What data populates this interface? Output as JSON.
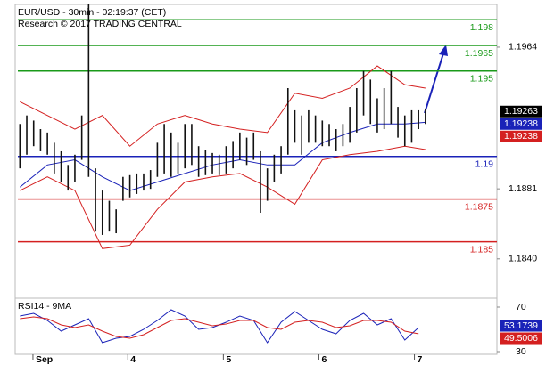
{
  "chart_data": [
    {
      "type": "ohlc",
      "title": "EUR/USD - 30min - 02:19:37 (CET)",
      "subtitle": "Research © 2017 TRADING CENTRAL",
      "xlim": [
        -0.3,
        69.4
      ],
      "ylim": [
        1.1818,
        1.1989
      ],
      "yticks": [
        1.1964,
        1.1881,
        {
          "value": 1.184,
          "label": "1.1840"
        }
      ],
      "xticks": [
        {
          "value": 1.9,
          "label": "Sep"
        },
        {
          "value": 15.7,
          "label": "4"
        },
        {
          "value": 29.6,
          "label": "5"
        },
        {
          "value": 43.5,
          "label": "6"
        },
        {
          "value": 57.4,
          "label": "7"
        }
      ],
      "highs": [
        1.1919,
        1.1924,
        1.1921,
        1.1916,
        1.1914,
        1.1908,
        1.1903,
        1.1895,
        1.1901,
        1.1924,
        1.1989,
        1.1893,
        1.188,
        1.1874,
        1.1869,
        1.1888,
        1.1889,
        1.189,
        1.189,
        1.1892,
        1.1908,
        1.1919,
        1.1914,
        1.1908,
        1.1919,
        1.1919,
        1.1906,
        1.1904,
        1.1902,
        1.1901,
        1.1906,
        1.1909,
        1.1914,
        1.1911,
        1.1914,
        1.1903,
        1.1893,
        1.1901,
        1.1906,
        1.194,
        1.1927,
        1.1924,
        1.1927,
        1.1924,
        1.1921,
        1.1919,
        1.1916,
        1.1919,
        1.1929,
        1.194,
        1.195,
        1.1945,
        1.1934,
        1.194,
        1.195,
        1.1929,
        1.1924,
        1.1927,
        1.1927,
        1.1928
      ],
      "lows": [
        1.1893,
        1.1901,
        1.1906,
        1.1903,
        1.1901,
        1.189,
        1.1885,
        1.188,
        1.1885,
        1.1898,
        1.1888,
        1.1856,
        1.1854,
        1.1856,
        1.1855,
        1.1874,
        1.1876,
        1.1878,
        1.188,
        1.1881,
        1.1888,
        1.189,
        1.1888,
        1.189,
        1.1893,
        1.1895,
        1.1888,
        1.1889,
        1.189,
        1.1889,
        1.189,
        1.1893,
        1.1898,
        1.1895,
        1.1898,
        1.1867,
        1.1874,
        1.1885,
        1.189,
        1.1901,
        1.1908,
        1.1901,
        1.1908,
        1.1908,
        1.1906,
        1.1906,
        1.1903,
        1.1906,
        1.1908,
        1.1914,
        1.1924,
        1.1919,
        1.1914,
        1.1916,
        1.1919,
        1.1911,
        1.1906,
        1.1908,
        1.1916,
        1.1919
      ],
      "overlays": [
        {
          "color": "#d42020",
          "x": [
            0,
            4,
            8,
            12,
            16,
            20,
            24,
            28,
            32,
            36,
            40,
            44,
            48,
            52,
            56,
            59
          ],
          "values": [
            1.1932,
            1.1924,
            1.1916,
            1.1924,
            1.1906,
            1.1919,
            1.1924,
            1.1919,
            1.1916,
            1.1914,
            1.1937,
            1.1934,
            1.194,
            1.1953,
            1.1942,
            1.194
          ]
        },
        {
          "color": "#d42020",
          "x": [
            0,
            4,
            8,
            12,
            16,
            20,
            24,
            28,
            32,
            36,
            40,
            44,
            48,
            52,
            56,
            59
          ],
          "values": [
            1.188,
            1.1888,
            1.188,
            1.1846,
            1.1848,
            1.1869,
            1.1885,
            1.1888,
            1.189,
            1.1882,
            1.1872,
            1.1898,
            1.1901,
            1.1903,
            1.1906,
            1.1904
          ]
        },
        {
          "color": "#1a22b8",
          "x": [
            0,
            4,
            8,
            12,
            16,
            20,
            24,
            28,
            32,
            36,
            40,
            44,
            48,
            52,
            56,
            59
          ],
          "values": [
            1.1882,
            1.1895,
            1.1898,
            1.1888,
            1.188,
            1.1885,
            1.189,
            1.1895,
            1.1898,
            1.1895,
            1.1895,
            1.1908,
            1.1914,
            1.1919,
            1.1919,
            1.192
          ]
        }
      ],
      "levels": [
        {
          "value": 1.198,
          "color": "#1a9a1a"
        },
        {
          "value": 1.1965,
          "color": "#1a9a1a"
        },
        {
          "value": 1.195,
          "color": "#1a9a1a"
        },
        {
          "value": 1.19,
          "color": "#1a22b8"
        },
        {
          "value": 1.1875,
          "color": "#d42020"
        },
        {
          "value": 1.185,
          "color": "#d42020"
        }
      ],
      "price_tags": [
        {
          "value": 1.19263,
          "color": "#000000"
        },
        {
          "value": 1.19238,
          "color": "#1a22b8"
        },
        {
          "value": 1.19238,
          "color": "#d42020"
        }
      ]
    },
    {
      "type": "line",
      "title": "RSI14 - 9MA",
      "ylim": [
        27.6,
        76.4
      ],
      "yticks": [
        70,
        30
      ],
      "x": [
        0,
        2,
        4,
        6,
        8,
        10,
        12,
        14,
        16,
        18,
        20,
        22,
        24,
        26,
        28,
        30,
        32,
        34,
        36,
        38,
        40,
        42,
        44,
        46,
        48,
        50,
        52,
        54,
        56,
        58
      ],
      "series": [
        {
          "color": "#1a22b8",
          "values": [
            62,
            64.4,
            58,
            48.4,
            54,
            59.6,
            38,
            42,
            43.6,
            50,
            58,
            67.6,
            62,
            50,
            51.6,
            56.4,
            62,
            58,
            38,
            56.4,
            66,
            58,
            50,
            46,
            58,
            64.4,
            54,
            59.6,
            40.4,
            51.6
          ]
        },
        {
          "color": "#d42020",
          "values": [
            59.6,
            61.2,
            59.6,
            54,
            51.6,
            54,
            48.4,
            43.6,
            42,
            45.2,
            51.6,
            58,
            59.6,
            56.4,
            53.2,
            54.8,
            58,
            58,
            51.6,
            50,
            56.4,
            58,
            56.4,
            51.6,
            53.2,
            58,
            58,
            56.4,
            48.4,
            46
          ]
        }
      ],
      "price_tags": [
        {
          "value": 53.1739,
          "color": "#1a22b8"
        },
        {
          "value": 49.5006,
          "color": "#d42020"
        }
      ]
    }
  ]
}
